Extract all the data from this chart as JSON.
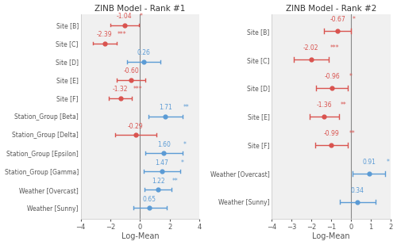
{
  "panel1": {
    "title": "ZINB Model - Rank #1",
    "labels": [
      "Site [B]",
      "Site [C]",
      "Site [D]",
      "Site [E]",
      "Site [F]",
      "Station_Group [Beta]",
      "Station_Group [Delta]",
      "Station_Group [Epsilon]",
      "Station_Group [Gamma]",
      "Weather [Overcast]",
      "Weather [Sunny]"
    ],
    "coef": [
      -1.04,
      -2.39,
      0.26,
      -0.6,
      -1.32,
      1.71,
      -0.29,
      1.6,
      1.47,
      1.22,
      0.65
    ],
    "ci_lo": [
      -2.0,
      -3.2,
      -0.85,
      -1.55,
      -2.1,
      0.55,
      -1.7,
      0.35,
      0.25,
      0.3,
      -0.45
    ],
    "ci_hi": [
      -0.08,
      -1.58,
      1.4,
      0.35,
      -0.55,
      2.85,
      1.12,
      2.85,
      2.7,
      2.1,
      1.78
    ],
    "sig": [
      "*",
      "***",
      "",
      "",
      "***",
      "**",
      "",
      "*",
      "*",
      "**",
      ""
    ],
    "colors": [
      "red",
      "red",
      "blue",
      "red",
      "red",
      "blue",
      "red",
      "blue",
      "blue",
      "blue",
      "blue"
    ],
    "xlim": [
      -4,
      4
    ],
    "xticks": [
      -4,
      -2,
      0,
      2,
      4
    ],
    "xlabel": "Log-Mean"
  },
  "panel2": {
    "title": "ZINB Model - Rank #2",
    "labels": [
      "Site [B]",
      "Site [C]",
      "Site [D]",
      "Site [E]",
      "Site [F]",
      "Weather [Overcast]",
      "Weather [Sunny]"
    ],
    "coef": [
      -0.67,
      -2.02,
      -0.96,
      -1.36,
      -0.99,
      0.91,
      0.34
    ],
    "ci_lo": [
      -1.35,
      -2.9,
      -1.75,
      -2.1,
      -1.8,
      0.08,
      -0.55
    ],
    "ci_hi": [
      0.01,
      -1.14,
      -0.17,
      -0.62,
      -0.18,
      1.74,
      1.23
    ],
    "sig": [
      "*",
      "***",
      "*",
      "**",
      "**",
      "*",
      ""
    ],
    "colors": [
      "red",
      "red",
      "red",
      "red",
      "red",
      "blue",
      "blue"
    ],
    "xlim": [
      -4,
      2
    ],
    "xticks": [
      -4,
      -3,
      -2,
      -1,
      0,
      1,
      2
    ],
    "xlabel": "Log-Mean"
  },
  "red_color": "#d9534f",
  "blue_color": "#5b9bd5",
  "label_color": "#555555",
  "bg_color": "#ffffff",
  "panel_bg": "#f0f0f0"
}
